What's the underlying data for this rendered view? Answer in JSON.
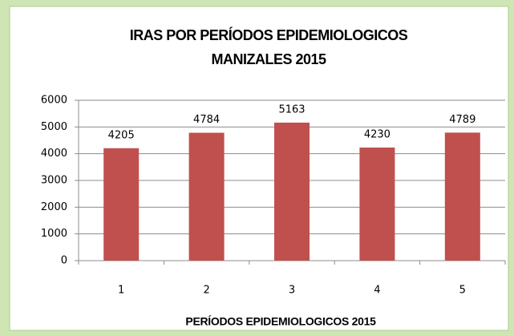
{
  "chart_data": {
    "type": "bar",
    "title": [
      "IRAS POR PERÍODOS EPIDEMIOLOGICOS",
      "MANIZALES 2015"
    ],
    "x_label": "PERÍODOS EPIDEMIOLOGICOS 2015",
    "categories": [
      "1",
      "2",
      "3",
      "4",
      "5"
    ],
    "values": [
      4205,
      4784,
      5163,
      4230,
      4789
    ],
    "color": "#c0504d",
    "ylim": [
      0,
      6000
    ],
    "yticks": [
      0,
      1000,
      2000,
      3000,
      4000,
      5000,
      6000
    ],
    "grid": true
  }
}
